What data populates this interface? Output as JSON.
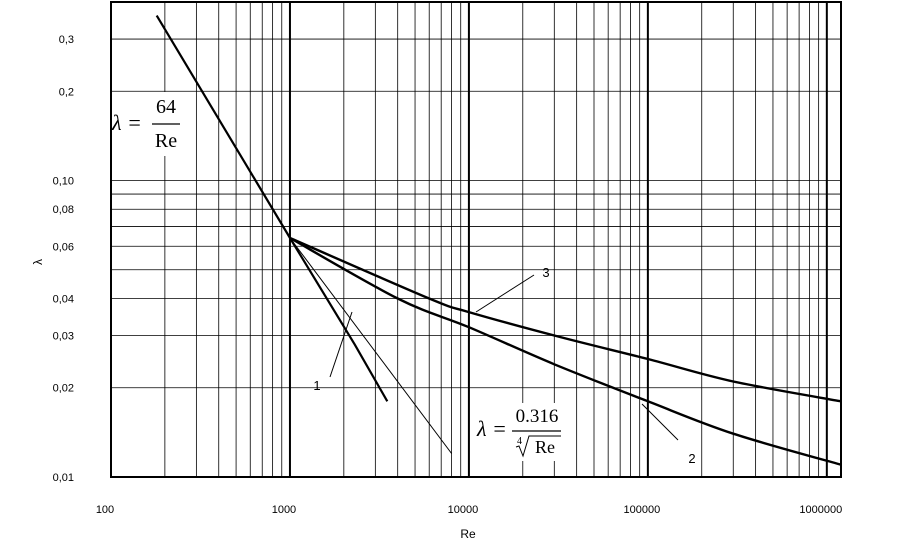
{
  "chart_data": {
    "type": "line",
    "title": "",
    "xlabel": "Re",
    "ylabel": "λ",
    "x_scale": "log",
    "y_scale": "log",
    "xlim": [
      100,
      1200000
    ],
    "ylim": [
      0.01,
      0.4
    ],
    "grid": true,
    "x_ticks": [
      {
        "value": 100,
        "label": "100"
      },
      {
        "value": 1000,
        "label": "1000"
      },
      {
        "value": 10000,
        "label": "10000"
      },
      {
        "value": 100000,
        "label": "100000"
      },
      {
        "value": 1000000,
        "label": "1000000"
      }
    ],
    "y_ticks": [
      {
        "value": 0.3,
        "label": "0,3"
      },
      {
        "value": 0.2,
        "label": "0,2"
      },
      {
        "value": 0.1,
        "label": "0,10"
      },
      {
        "value": 0.08,
        "label": "0,08"
      },
      {
        "value": 0.06,
        "label": "0,06"
      },
      {
        "value": 0.04,
        "label": "0,04"
      },
      {
        "value": 0.03,
        "label": "0,03"
      },
      {
        "value": 0.02,
        "label": "0,02"
      },
      {
        "value": 0.01,
        "label": "0,01"
      }
    ],
    "formulas": {
      "laminar": {
        "lhs": "λ =",
        "numerator": "64",
        "denominator": "Re"
      },
      "blasius": {
        "lhs": "λ =",
        "numerator": "0.316",
        "root_index": "4",
        "radicand": "Re"
      }
    },
    "series": [
      {
        "label": "1",
        "x": [
          180,
          1000,
          2300,
          3500
        ],
        "y": [
          0.36,
          0.064,
          0.028,
          0.018
        ]
      },
      {
        "label": "2",
        "x": [
          1000,
          4000,
          10000,
          30000,
          100000,
          300000,
          1200000
        ],
        "y": [
          0.064,
          0.04,
          0.032,
          0.024,
          0.018,
          0.014,
          0.011
        ]
      },
      {
        "label": "3",
        "x": [
          1000,
          6000,
          10000,
          30000,
          100000,
          300000,
          1200000
        ],
        "y": [
          0.064,
          0.04,
          0.036,
          0.03,
          0.025,
          0.021,
          0.018
        ]
      },
      {
        "x": [
          1000,
          8000
        ],
        "y": [
          0.064,
          0.012
        ]
      }
    ]
  }
}
